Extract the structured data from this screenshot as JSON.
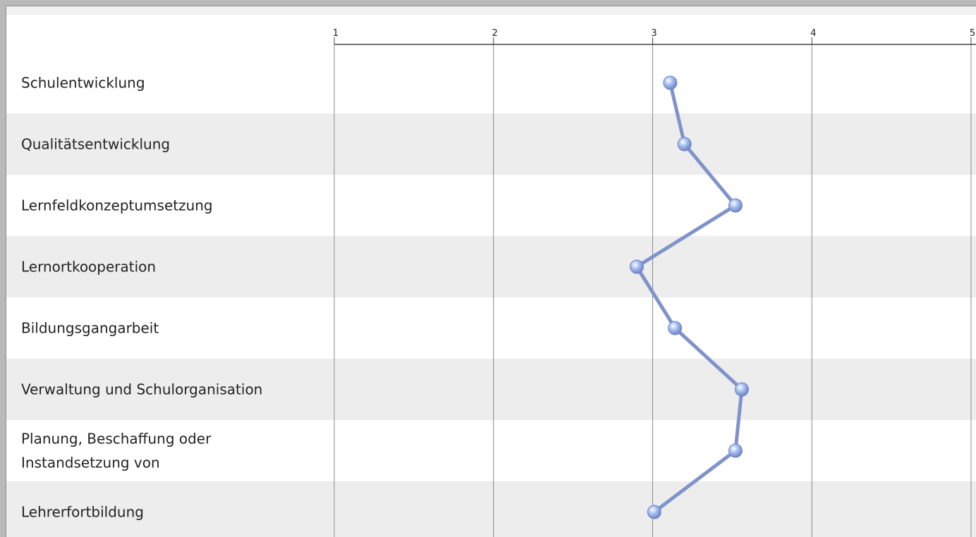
{
  "chart_data": {
    "type": "line",
    "orientation": "horizontal-profile",
    "categories": [
      "Schulentwicklung",
      "Qualitätsentwicklung",
      "Lernfeldkonzeptumsetzung",
      "Lernortkooperation",
      "Bildungsgangarbeit",
      "Verwaltung und Schulorganisation",
      [
        "Planung, Beschaffung oder",
        "Instandsetzung von"
      ],
      "Lehrerfortbildung"
    ],
    "values": [
      3.11,
      3.2,
      3.52,
      2.9,
      3.14,
      3.56,
      3.52,
      3.01
    ],
    "xlim": [
      1,
      5
    ],
    "xticks": [
      "1",
      "2",
      "3",
      "4",
      "5"
    ],
    "grid": true,
    "colors": {
      "line": "#7f93c9",
      "marker": "#a9c0f2",
      "marker_edge": "#6f86c4",
      "stripe": "#ededed",
      "gridline": "#8a8a8a"
    }
  }
}
